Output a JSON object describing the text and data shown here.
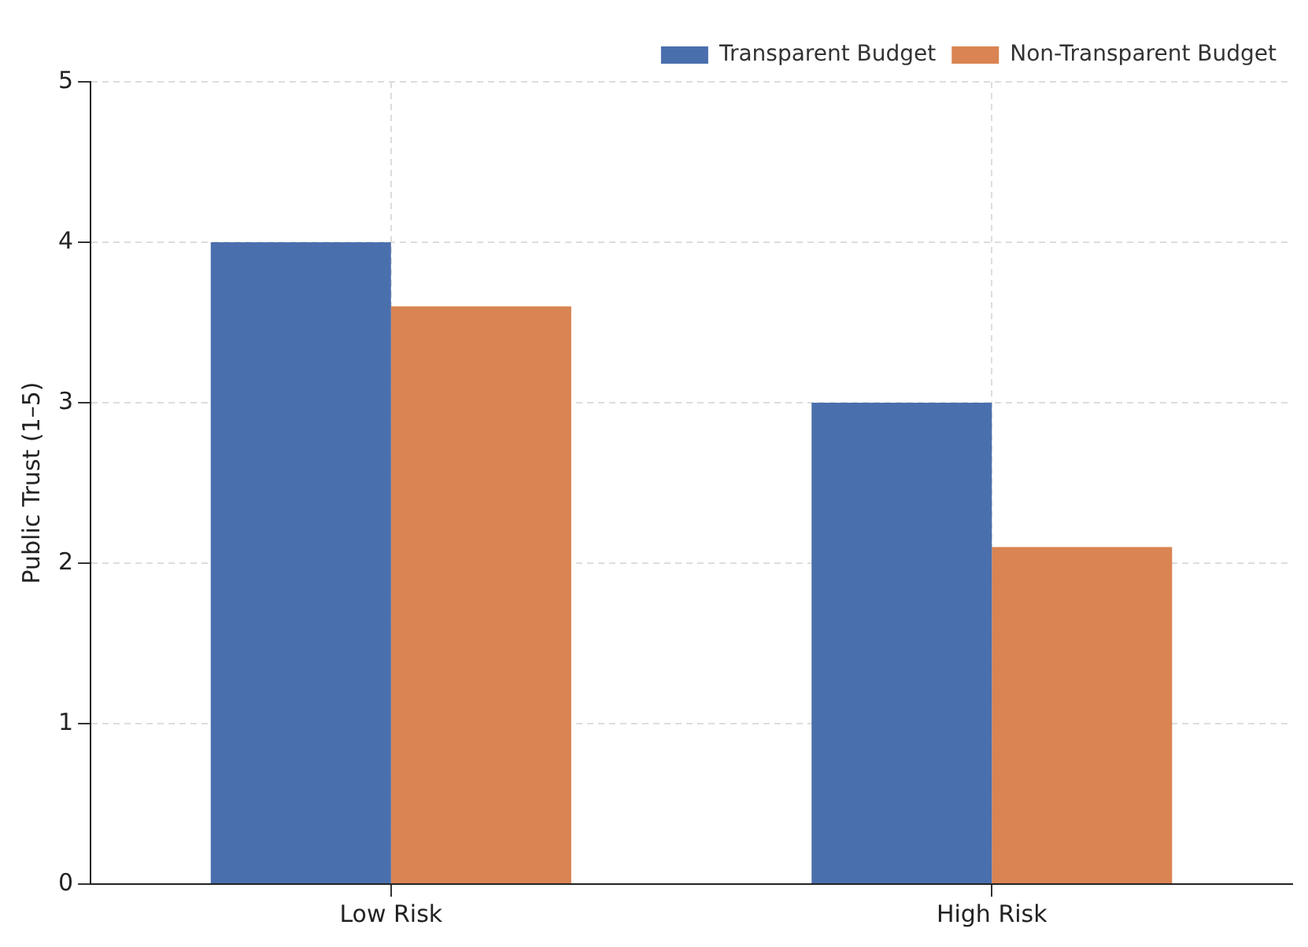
{
  "chart_data": {
    "type": "bar",
    "ylabel": "Public Trust (1–5)",
    "categories": [
      "Low Risk",
      "High Risk"
    ],
    "series": [
      {
        "name": "Transparent Budget",
        "color": "#4a6fad",
        "values": [
          4.0,
          3.0
        ]
      },
      {
        "name": "Non-Transparent Budget",
        "color": "#d98452",
        "values": [
          3.6,
          2.1
        ]
      }
    ],
    "ylim": [
      0,
      5
    ],
    "yticks": [
      0,
      1,
      2,
      3,
      4,
      5
    ],
    "grid": true,
    "legend": "top right"
  }
}
